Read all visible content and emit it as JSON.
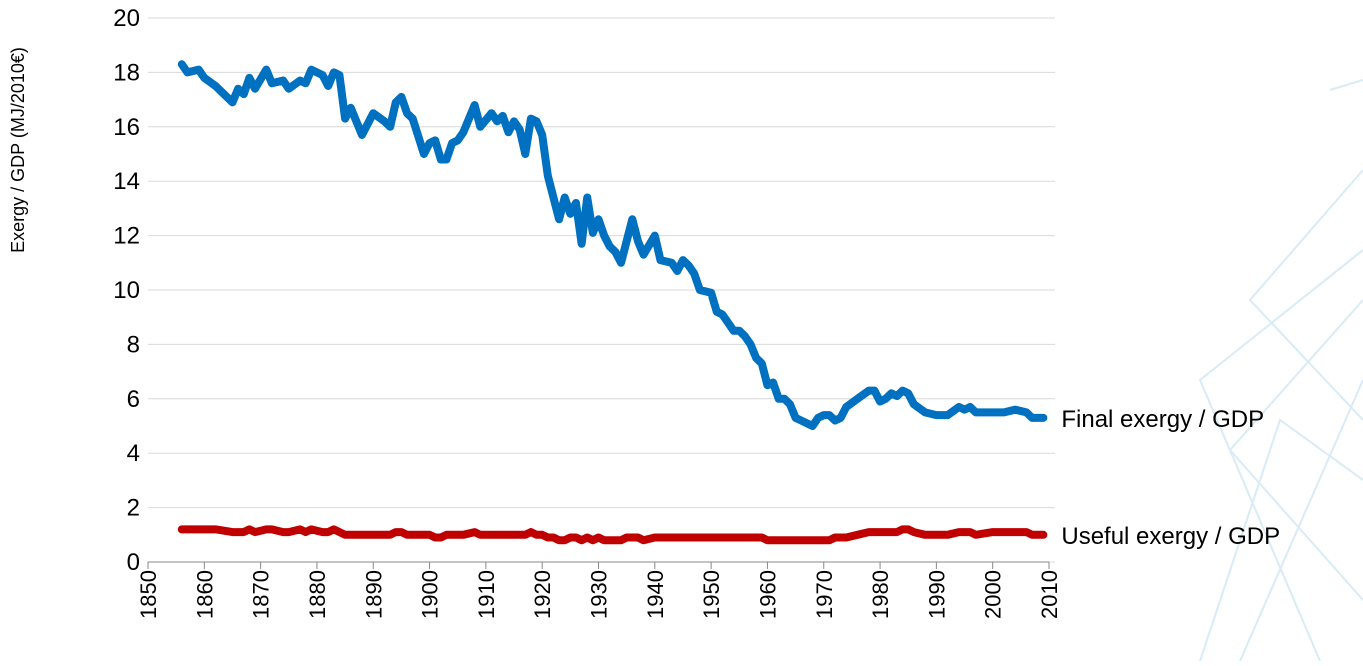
{
  "chart_data": {
    "type": "line",
    "y_label": "Exergy / GDP (MJ/2010€)",
    "x": [
      1856,
      1857,
      1859,
      1860,
      1862,
      1865,
      1866,
      1867,
      1868,
      1869,
      1871,
      1872,
      1874,
      1875,
      1877,
      1878,
      1879,
      1881,
      1882,
      1883,
      1884,
      1885,
      1886,
      1888,
      1890,
      1892,
      1893,
      1894,
      1895,
      1896,
      1897,
      1899,
      1900,
      1901,
      1902,
      1903,
      1904,
      1905,
      1906,
      1908,
      1909,
      1911,
      1912,
      1913,
      1914,
      1915,
      1916,
      1917,
      1918,
      1919,
      1920,
      1921,
      1922,
      1923,
      1924,
      1925,
      1926,
      1927,
      1928,
      1929,
      1930,
      1931,
      1932,
      1933,
      1934,
      1935,
      1936,
      1937,
      1938,
      1940,
      1941,
      1943,
      1944,
      1945,
      1946,
      1947,
      1948,
      1950,
      1951,
      1952,
      1953,
      1954,
      1955,
      1956,
      1957,
      1958,
      1959,
      1960,
      1961,
      1962,
      1963,
      1964,
      1965,
      1966,
      1968,
      1969,
      1970,
      1971,
      1972,
      1973,
      1974,
      1976,
      1978,
      1979,
      1980,
      1981,
      1982,
      1983,
      1984,
      1985,
      1986,
      1988,
      1990,
      1992,
      1994,
      1995,
      1996,
      1997,
      2000,
      2002,
      2004,
      2006,
      2007,
      2009
    ],
    "series": [
      {
        "name": "Final exergy / GDP",
        "color": "#0070c0",
        "values": [
          18.3,
          18.0,
          18.1,
          17.8,
          17.5,
          16.9,
          17.4,
          17.2,
          17.8,
          17.4,
          18.1,
          17.6,
          17.7,
          17.4,
          17.7,
          17.6,
          18.1,
          17.9,
          17.5,
          18.0,
          17.9,
          16.3,
          16.7,
          15.7,
          16.5,
          16.2,
          16.0,
          16.9,
          17.1,
          16.5,
          16.3,
          15.0,
          15.4,
          15.5,
          14.8,
          14.8,
          15.4,
          15.5,
          15.8,
          16.8,
          16.0,
          16.5,
          16.2,
          16.4,
          15.8,
          16.2,
          15.9,
          15.0,
          16.3,
          16.2,
          15.7,
          14.2,
          13.4,
          12.6,
          13.4,
          12.8,
          13.2,
          11.7,
          13.4,
          12.1,
          12.6,
          12.0,
          11.6,
          11.4,
          11.0,
          11.8,
          12.6,
          11.8,
          11.3,
          12.0,
          11.1,
          11.0,
          10.7,
          11.1,
          10.9,
          10.6,
          10.0,
          9.9,
          9.2,
          9.1,
          8.8,
          8.5,
          8.5,
          8.3,
          8.0,
          7.5,
          7.3,
          6.5,
          6.6,
          6.0,
          6.0,
          5.8,
          5.3,
          5.2,
          5.0,
          5.3,
          5.4,
          5.4,
          5.2,
          5.3,
          5.7,
          6.0,
          6.3,
          6.3,
          5.9,
          6.0,
          6.2,
          6.1,
          6.3,
          6.2,
          5.8,
          5.5,
          5.4,
          5.4,
          5.7,
          5.6,
          5.7,
          5.5,
          5.5,
          5.5,
          5.6,
          5.5,
          5.3,
          5.3
        ]
      },
      {
        "name": "Useful exergy / GDP",
        "color": "#c00000",
        "values": [
          1.2,
          1.2,
          1.2,
          1.2,
          1.2,
          1.1,
          1.1,
          1.1,
          1.2,
          1.1,
          1.2,
          1.2,
          1.1,
          1.1,
          1.2,
          1.1,
          1.2,
          1.1,
          1.1,
          1.2,
          1.1,
          1.0,
          1.0,
          1.0,
          1.0,
          1.0,
          1.0,
          1.1,
          1.1,
          1.0,
          1.0,
          1.0,
          1.0,
          0.9,
          0.9,
          1.0,
          1.0,
          1.0,
          1.0,
          1.1,
          1.0,
          1.0,
          1.0,
          1.0,
          1.0,
          1.0,
          1.0,
          1.0,
          1.1,
          1.0,
          1.0,
          0.9,
          0.9,
          0.8,
          0.8,
          0.9,
          0.9,
          0.8,
          0.9,
          0.8,
          0.9,
          0.8,
          0.8,
          0.8,
          0.8,
          0.9,
          0.9,
          0.9,
          0.8,
          0.9,
          0.9,
          0.9,
          0.9,
          0.9,
          0.9,
          0.9,
          0.9,
          0.9,
          0.9,
          0.9,
          0.9,
          0.9,
          0.9,
          0.9,
          0.9,
          0.9,
          0.9,
          0.8,
          0.8,
          0.8,
          0.8,
          0.8,
          0.8,
          0.8,
          0.8,
          0.8,
          0.8,
          0.8,
          0.9,
          0.9,
          0.9,
          1.0,
          1.1,
          1.1,
          1.1,
          1.1,
          1.1,
          1.1,
          1.2,
          1.2,
          1.1,
          1.0,
          1.0,
          1.0,
          1.1,
          1.1,
          1.1,
          1.0,
          1.1,
          1.1,
          1.1,
          1.1,
          1.0,
          1.0
        ]
      }
    ],
    "xlim": [
      1850,
      2010
    ],
    "xticks": [
      1850,
      1860,
      1870,
      1880,
      1890,
      1900,
      1910,
      1920,
      1930,
      1940,
      1950,
      1960,
      1970,
      1980,
      1990,
      2000,
      2010
    ],
    "ylim": [
      0,
      20
    ],
    "yticks": [
      0,
      2,
      4,
      6,
      8,
      10,
      12,
      14,
      16,
      18,
      20
    ],
    "grid": true
  }
}
